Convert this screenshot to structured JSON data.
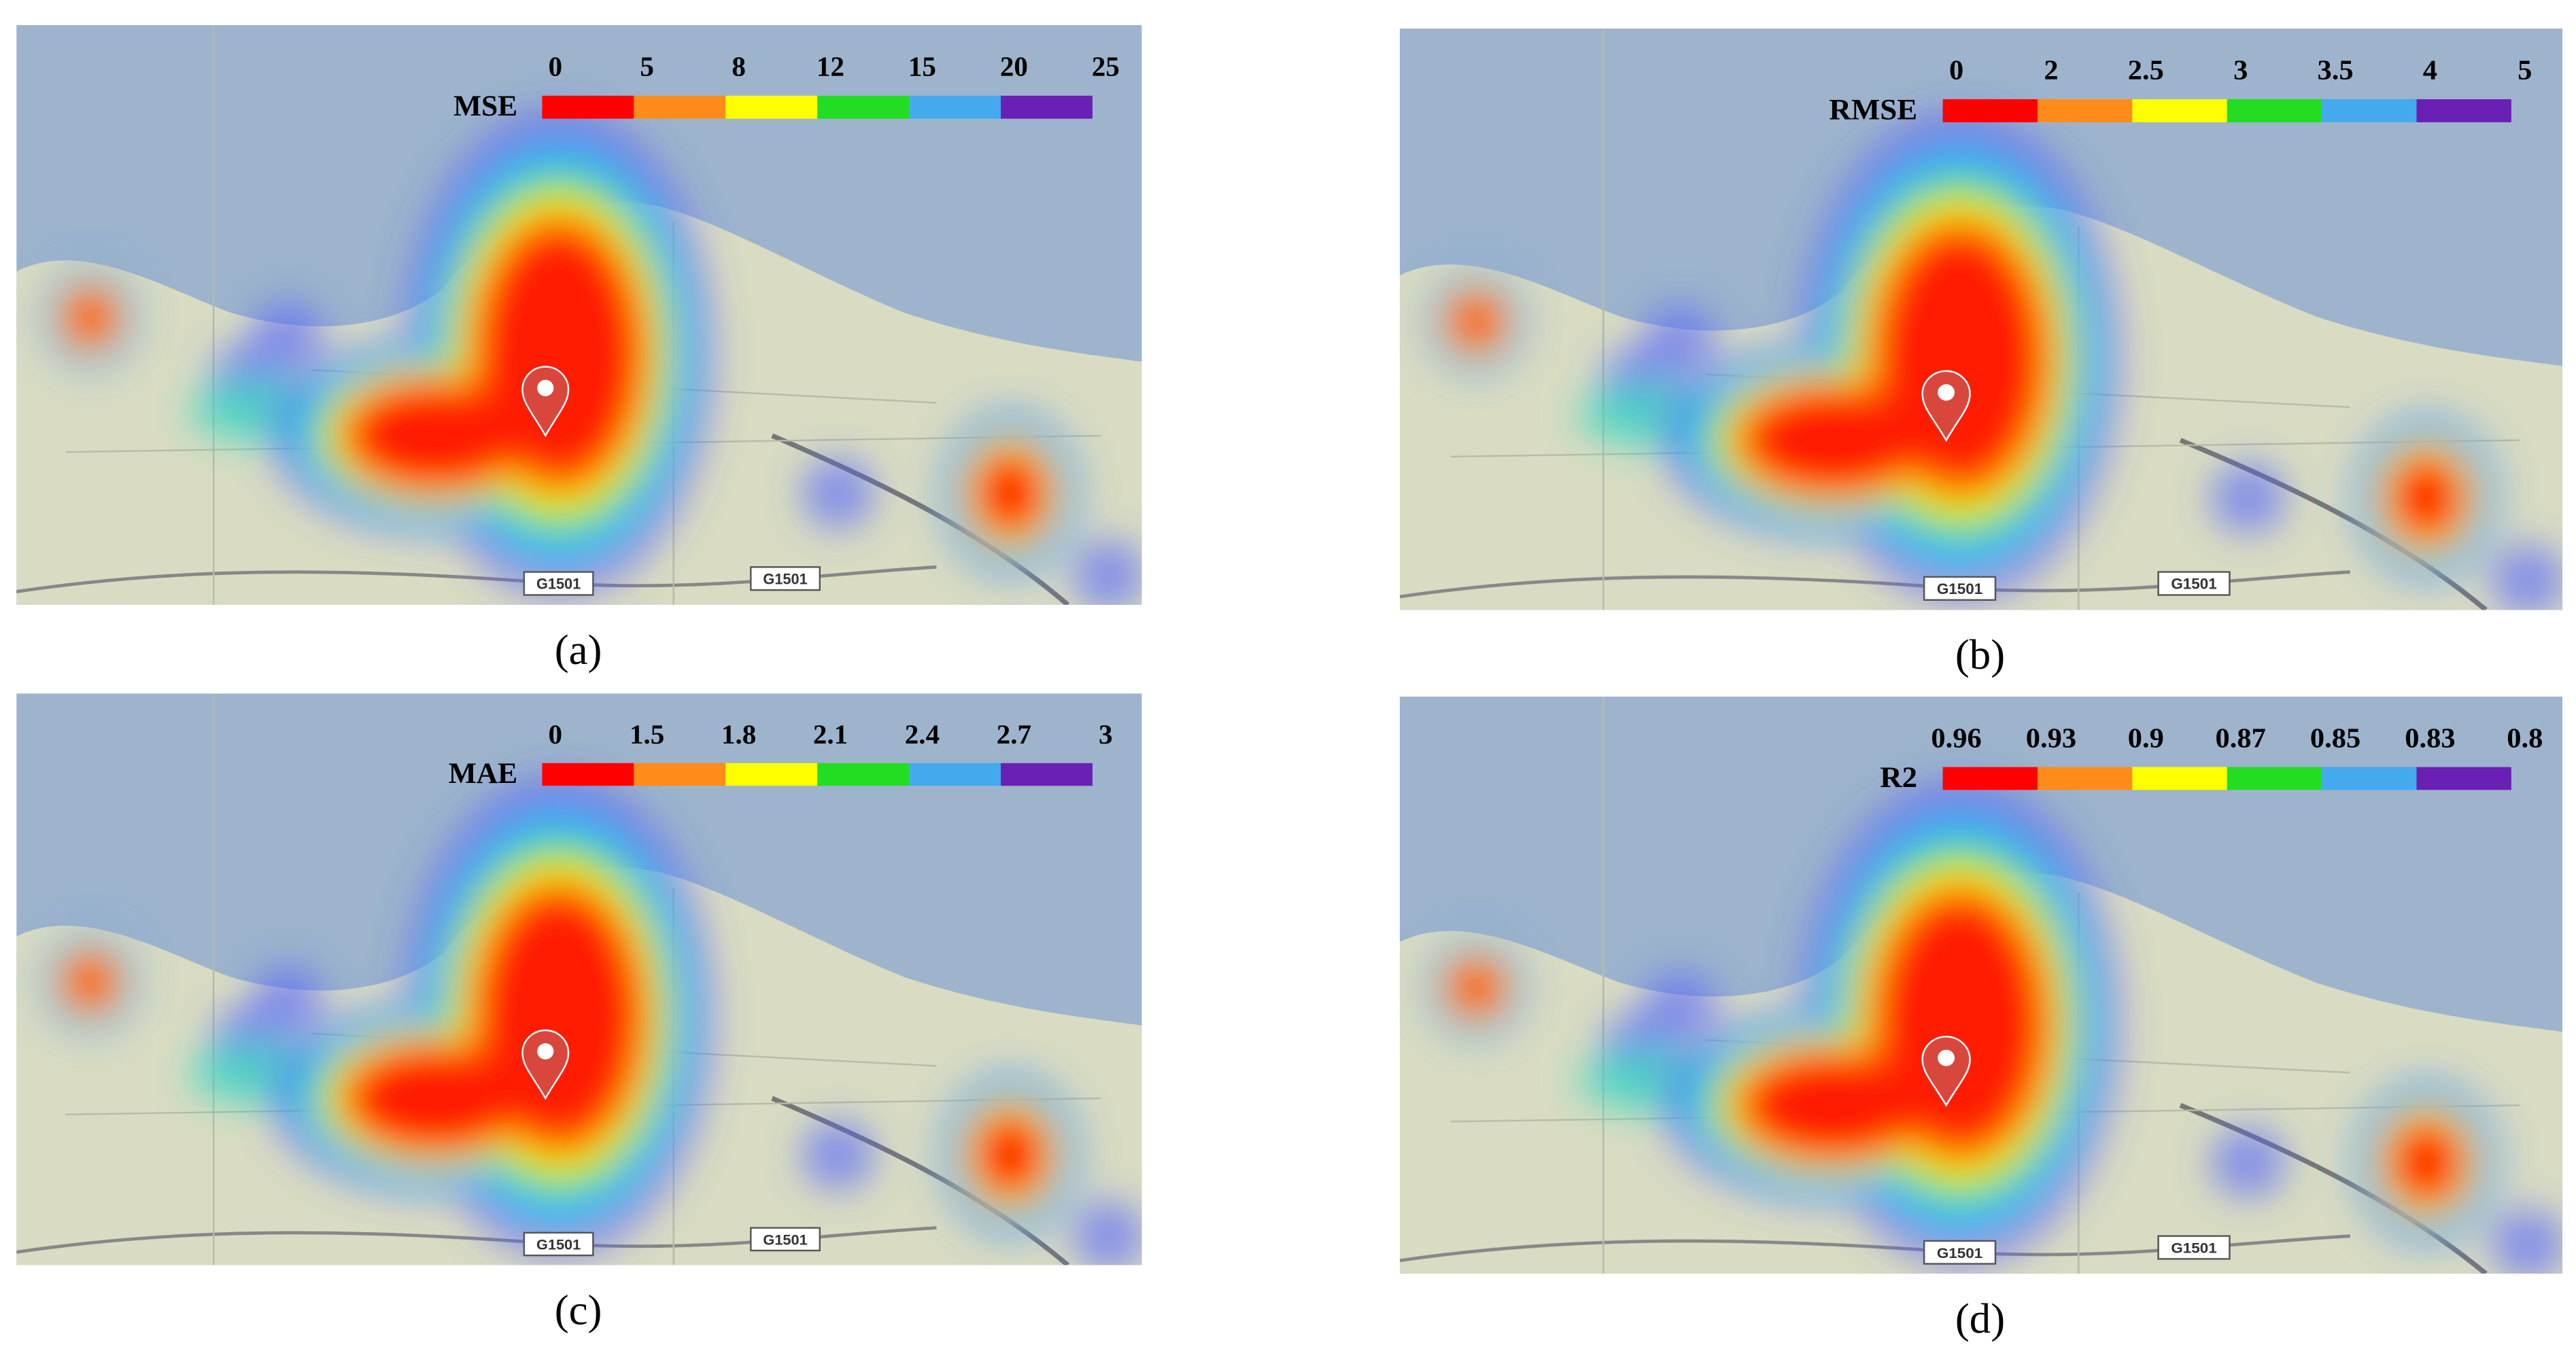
{
  "panels": [
    {
      "legend": {
        "title": "MSE",
        "ticks": [
          "0",
          "5",
          "8",
          "12",
          "15",
          "20",
          "25"
        ]
      },
      "roads": [
        "G1501",
        "G1501"
      ],
      "caption": "(a)"
    },
    {
      "legend": {
        "title": "RMSE",
        "ticks": [
          "0",
          "2",
          "2.5",
          "3",
          "3.5",
          "4",
          "5"
        ]
      },
      "roads": [
        "G1501",
        "G1501"
      ],
      "caption": "(b)"
    },
    {
      "legend": {
        "title": "MAE",
        "ticks": [
          "0",
          "1.5",
          "1.8",
          "2.1",
          "2.4",
          "2.7",
          "3"
        ]
      },
      "roads": [
        "G1501",
        "G1501"
      ],
      "caption": "(c)"
    },
    {
      "legend": {
        "title": "R2",
        "ticks": [
          "0.96",
          "0.93",
          "0.9",
          "0.87",
          "0.85",
          "0.83",
          "0.8"
        ]
      },
      "roads": [
        "G1501",
        "G1501"
      ],
      "caption": "(d)"
    }
  ]
}
